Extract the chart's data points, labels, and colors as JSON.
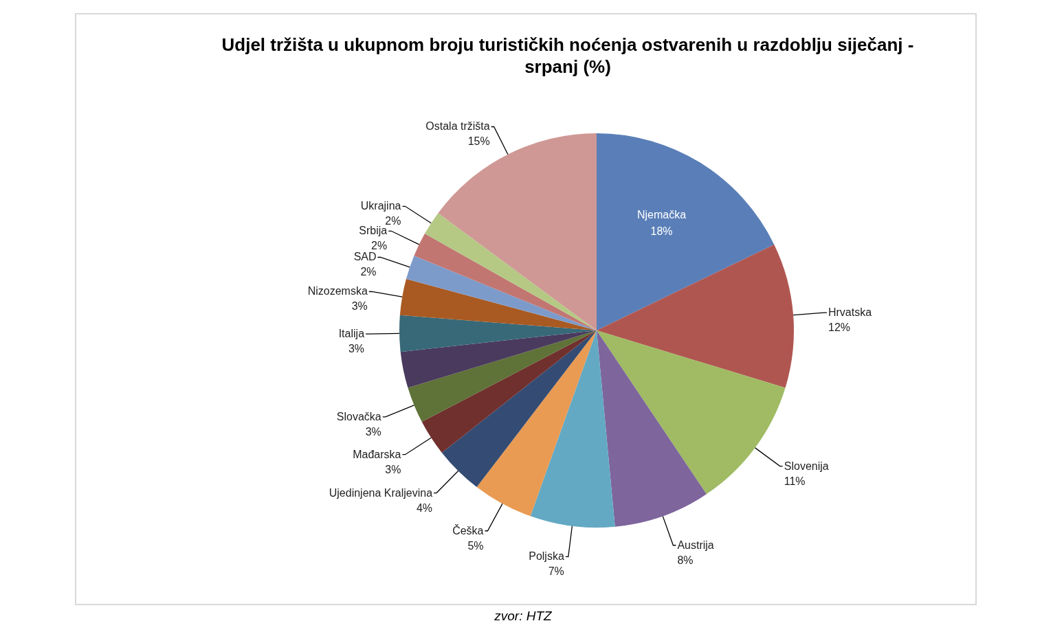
{
  "chart_data": {
    "type": "pie",
    "title": "Udjel tržišta u ukupnom broju turističkih noćenja ostvarenih u razdoblju siječanj - srpanj (%)",
    "categories": [
      "Njemačka",
      "Hrvatska",
      "Slovenija",
      "Austrija",
      "Poljska",
      "Češka",
      "Ujedinjena Kraljevina",
      "Mađarska",
      "Slovačka",
      null,
      "Italija",
      "Nizozemska",
      "SAD",
      "Srbija",
      "Ukrajina",
      "Ostala tržišta"
    ],
    "values": [
      18,
      12,
      11,
      8,
      7,
      5,
      4,
      3,
      3,
      3,
      3,
      3,
      2,
      2,
      2,
      15
    ],
    "value_labels": [
      "18%",
      "12%",
      "11%",
      "8%",
      "7%",
      "5%",
      "4%",
      "3%",
      "3%",
      null,
      "3%",
      "3%",
      "2%",
      "2%",
      "2%",
      "15%"
    ],
    "colors": [
      "#5a7fb8",
      "#b05651",
      "#a0bb63",
      "#7e659c",
      "#63a9c3",
      "#e99b53",
      "#344c73",
      "#70302e",
      "#5f7238",
      "#4a3a5e",
      "#386978",
      "#a95a22",
      "#7d9bca",
      "#c27672",
      "#b5c985",
      "#cf9895"
    ],
    "annotations": [
      "zvor: HTZ"
    ]
  }
}
